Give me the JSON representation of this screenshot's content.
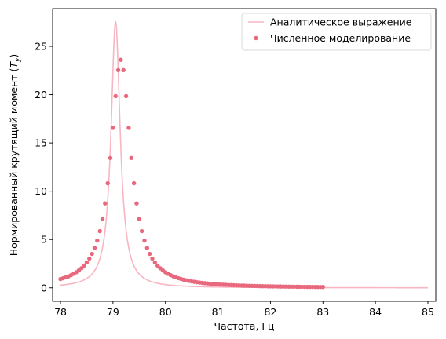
{
  "chart_data": {
    "type": "line",
    "xlabel": "Частота, Гц",
    "ylabel_prefix": "Нормированный крутящий момент (",
    "ylabel_var": "T",
    "ylabel_sub": "y",
    "ylabel_suffix": ")",
    "xlim": [
      77.85,
      85.15
    ],
    "ylim": [
      -1.4,
      28.9
    ],
    "x_ticks": [
      78,
      79,
      80,
      81,
      82,
      83,
      84,
      85
    ],
    "y_ticks": [
      0,
      5,
      10,
      15,
      20,
      25
    ],
    "grid": false,
    "legend_position": "top-right",
    "series": [
      {
        "name": "Аналитическое выражение",
        "kind": "line",
        "color": "#f7b6c2",
        "model": {
          "type": "lorentzian",
          "peak_x": 79.05,
          "peak_y": 27.6,
          "half_width": 0.105
        },
        "x_range": [
          78.0,
          85.0
        ]
      },
      {
        "name": "Численное моделирование",
        "kind": "scatter",
        "color": "#e8697d",
        "model": {
          "type": "lorentzian",
          "peak_x": 79.15,
          "peak_y": 23.6,
          "half_width": 0.23
        },
        "x_range": [
          78.0,
          83.0
        ],
        "step": 0.05
      }
    ]
  }
}
